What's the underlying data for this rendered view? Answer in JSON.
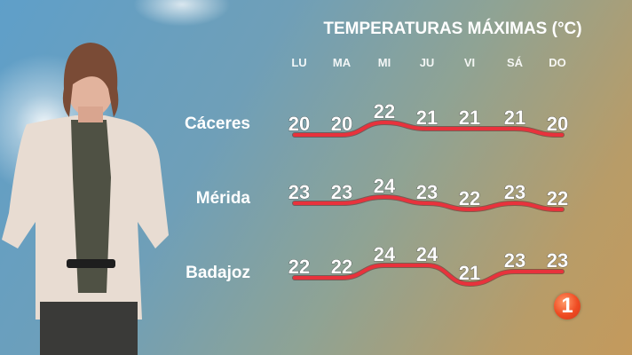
{
  "chart_data": {
    "type": "line",
    "title": "TEMPERATURAS MÁXIMAS (°C)",
    "categories": [
      "LU",
      "MA",
      "MI",
      "JU",
      "VI",
      "SÁ",
      "DO"
    ],
    "series": [
      {
        "name": "Cáceres",
        "values": [
          20,
          20,
          22,
          21,
          21,
          21,
          20
        ]
      },
      {
        "name": "Mérida",
        "values": [
          23,
          23,
          24,
          23,
          22,
          23,
          22
        ]
      },
      {
        "name": "Badajoz",
        "values": [
          22,
          22,
          24,
          24,
          21,
          23,
          23
        ]
      }
    ],
    "line_color": "#e8323c",
    "grid": false,
    "legend": "left row labels"
  },
  "logo": {
    "text": "1",
    "color": "#ef4b22"
  }
}
